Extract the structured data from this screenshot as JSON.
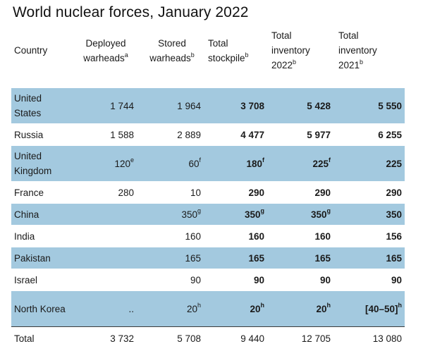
{
  "title": "World nuclear forces, January 2022",
  "headers": {
    "country": "Country",
    "deployed": {
      "line1": "Deployed",
      "line2": "warheads",
      "note": "a"
    },
    "stored": {
      "line1": "Stored",
      "line2": "warheads",
      "note": "b"
    },
    "total_stockpile": {
      "line1": "Total",
      "line2": "stockpile",
      "note": "b"
    },
    "inventory_2022": {
      "line1": "Total",
      "line2": "inventory",
      "line3": "2022",
      "note": "b"
    },
    "inventory_2021": {
      "line1": "Total",
      "line2": "inventory",
      "line3": "2021",
      "note": "b"
    }
  },
  "rows": [
    {
      "country": "United States",
      "deployed": "1 744",
      "deployed_note": "",
      "stored": "1 964",
      "stored_note": "",
      "stockpile": "3 708",
      "stockpile_note": "",
      "inv2022": "5 428",
      "inv2022_note": "",
      "inv2021": "5 550",
      "inv2021_note": ""
    },
    {
      "country": "Russia",
      "deployed": "1 588",
      "deployed_note": "",
      "stored": "2 889",
      "stored_note": "",
      "stockpile": "4 477",
      "stockpile_note": "",
      "inv2022": "5 977",
      "inv2022_note": "",
      "inv2021": "6 255",
      "inv2021_note": ""
    },
    {
      "country": "United Kingdom",
      "deployed": "120",
      "deployed_note": "e",
      "stored": "60",
      "stored_note": "f",
      "stockpile": "180",
      "stockpile_note": "f",
      "inv2022": "225",
      "inv2022_note": "f",
      "inv2021": "225",
      "inv2021_note": ""
    },
    {
      "country": "France",
      "deployed": "280",
      "deployed_note": "",
      "stored": "10",
      "stored_note": "",
      "stockpile": "290",
      "stockpile_note": "",
      "inv2022": "290",
      "inv2022_note": "",
      "inv2021": "290",
      "inv2021_note": ""
    },
    {
      "country": "China",
      "deployed": "",
      "deployed_note": "",
      "stored": "350",
      "stored_note": "g",
      "stockpile": "350",
      "stockpile_note": "g",
      "inv2022": "350",
      "inv2022_note": "g",
      "inv2021": "350",
      "inv2021_note": ""
    },
    {
      "country": "India",
      "deployed": "",
      "deployed_note": "",
      "stored": "160",
      "stored_note": "",
      "stockpile": "160",
      "stockpile_note": "",
      "inv2022": "160",
      "inv2022_note": "",
      "inv2021": "156",
      "inv2021_note": ""
    },
    {
      "country": "Pakistan",
      "deployed": "",
      "deployed_note": "",
      "stored": "165",
      "stored_note": "",
      "stockpile": "165",
      "stockpile_note": "",
      "inv2022": "165",
      "inv2022_note": "",
      "inv2021": "165",
      "inv2021_note": ""
    },
    {
      "country": "Israel",
      "deployed": "",
      "deployed_note": "",
      "stored": "90",
      "stored_note": "",
      "stockpile": "90",
      "stockpile_note": "",
      "inv2022": "90",
      "inv2022_note": "",
      "inv2021": "90",
      "inv2021_note": ""
    },
    {
      "country": "North Korea",
      "deployed": "..",
      "deployed_note": "",
      "stored": "20",
      "stored_note": "h",
      "stockpile": "20",
      "stockpile_note": "h",
      "inv2022": "20",
      "inv2022_note": "h",
      "inv2021": "[40–50]",
      "inv2021_note": "h"
    }
  ],
  "total": {
    "label": "Total",
    "deployed": "3 732",
    "stored": "5 708",
    "stockpile": "9 440",
    "inv2022": "12 705",
    "inv2021": "13 080"
  },
  "colors": {
    "shade": "#a3c9df",
    "text": "#1a1a1a"
  }
}
